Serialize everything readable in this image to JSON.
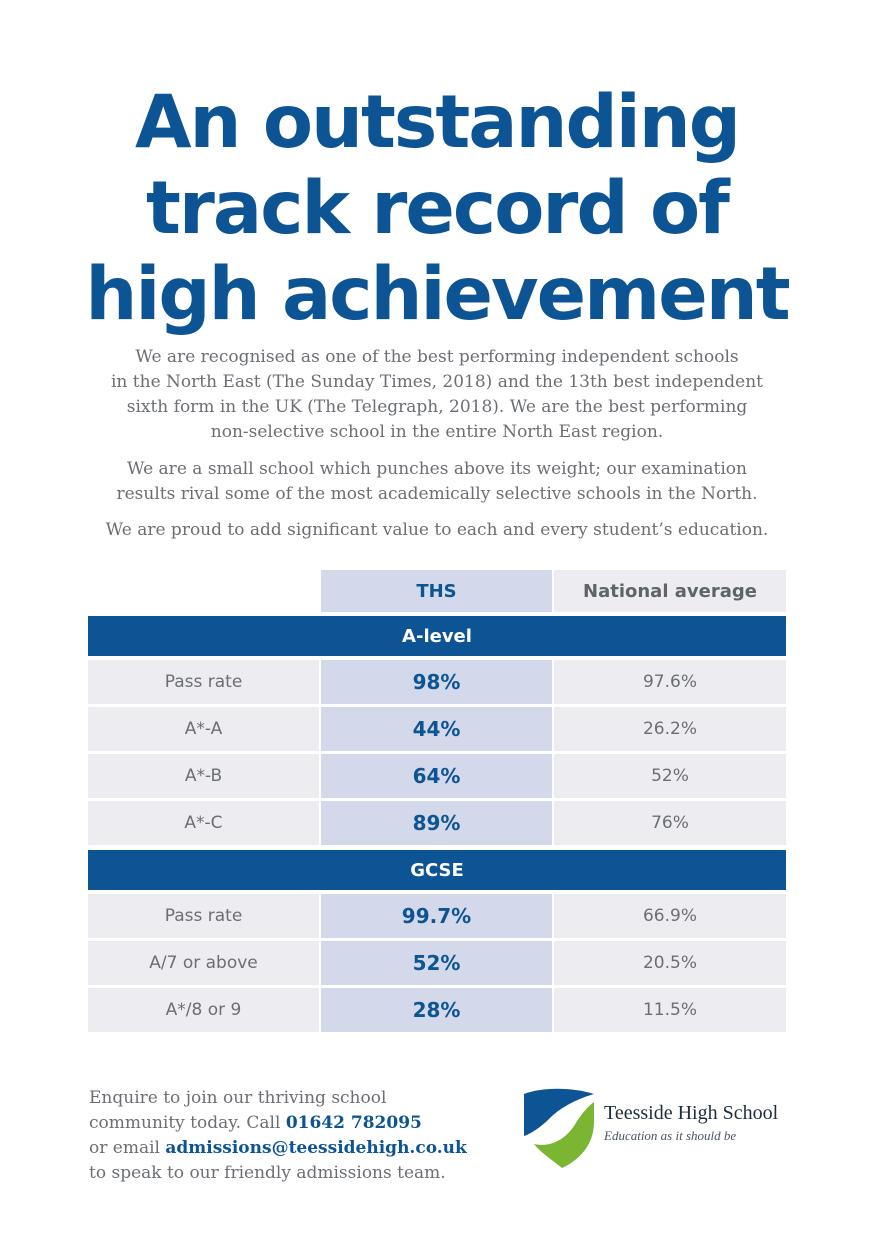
{
  "headline": {
    "line1": "An outstanding",
    "line2": "track record of",
    "line3": "high achievement"
  },
  "intro": {
    "p1": [
      "We are recognised as one of the best performing independent schools",
      "in the North East (The Sunday Times, 2018) and the 13th best independent",
      "sixth form in the UK (The Telegraph, 2018). We are the best performing",
      "non-selective school in the entire North East region."
    ],
    "p2": [
      "We are a small school which punches above its weight; our examination",
      "results rival some of the most academically selective schools in the North."
    ],
    "p3": "We are proud to add significant value to each and every student’s education."
  },
  "table": {
    "col_ths": "THS",
    "col_national": "National average",
    "sections": [
      {
        "title": "A-level",
        "rows": [
          {
            "label": "Pass rate",
            "ths": "98%",
            "national": "97.6%"
          },
          {
            "label": "A*-A",
            "ths": "44%",
            "national": "26.2%"
          },
          {
            "label": "A*-B",
            "ths": "64%",
            "national": "52%"
          },
          {
            "label": "A*-C",
            "ths": "89%",
            "national": "76%"
          }
        ]
      },
      {
        "title": "GCSE",
        "rows": [
          {
            "label": "Pass rate",
            "ths": "99.7%",
            "national": "66.9%"
          },
          {
            "label": "A/7 or above",
            "ths": "52%",
            "national": "20.5%"
          },
          {
            "label": "A*/8 or 9",
            "ths": "28%",
            "national": "11.5%"
          }
        ]
      }
    ]
  },
  "contact": {
    "line1": "Enquire to join our thriving school",
    "line2_prefix": "community today. Call ",
    "phone": "01642 782095",
    "line3_prefix": "or email ",
    "email": "admissions@teessidehigh.co.uk",
    "line4": "to speak to our friendly admissions team."
  },
  "logo": {
    "name": "Teesside High School",
    "tagline": "Education as it should be",
    "colors": {
      "blue": "#0d5494",
      "green": "#7ab632"
    }
  },
  "colors": {
    "brand_blue": "#0d5494",
    "body_grey": "#6b6f74",
    "ths_column": "#d3d9ea",
    "light_cell": "#ececf1"
  }
}
